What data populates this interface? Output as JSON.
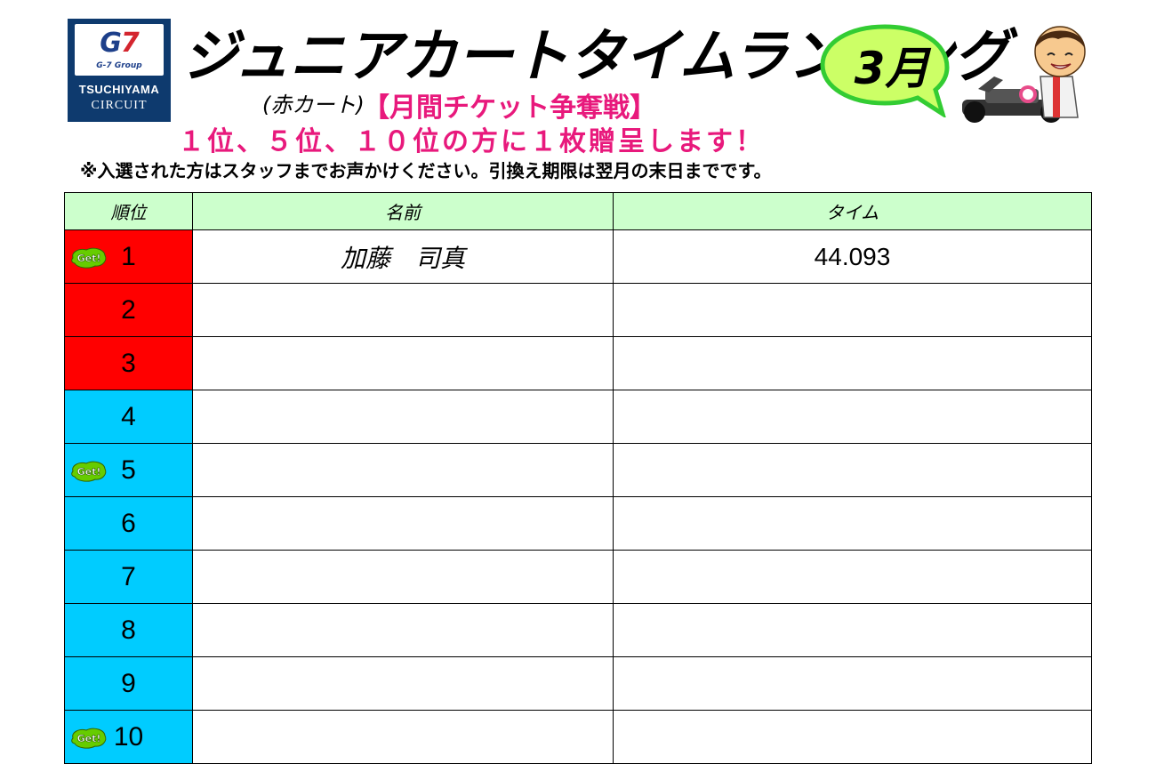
{
  "logo": {
    "mark_g": "G",
    "mark_7": "7",
    "group": "G-7 Group",
    "name_line1": "TSUCHIYAMA",
    "name_line2": "CIRCUIT"
  },
  "header": {
    "title": "ジュニアカートタイムランキング",
    "kart_type": "(赤カート)",
    "ticket": "【月間チケット争奪戦】",
    "award": "１位、５位、１０位の方に１枚贈呈します！",
    "note": "※入選された方はスタッフまでお声かけください。引換え期限は翌月の末日までです。",
    "month": "3月"
  },
  "table": {
    "headers": {
      "rank": "順位",
      "name": "名前",
      "time": "タイム"
    },
    "get_label": "Get!",
    "rows": [
      {
        "rank": "1",
        "name": "加藤　司真",
        "time": "44.093",
        "color": "red",
        "get": true
      },
      {
        "rank": "2",
        "name": "",
        "time": "",
        "color": "red",
        "get": false
      },
      {
        "rank": "3",
        "name": "",
        "time": "",
        "color": "red",
        "get": false
      },
      {
        "rank": "4",
        "name": "",
        "time": "",
        "color": "blue",
        "get": false
      },
      {
        "rank": "5",
        "name": "",
        "time": "",
        "color": "blue",
        "get": true
      },
      {
        "rank": "6",
        "name": "",
        "time": "",
        "color": "blue",
        "get": false
      },
      {
        "rank": "7",
        "name": "",
        "time": "",
        "color": "blue",
        "get": false
      },
      {
        "rank": "8",
        "name": "",
        "time": "",
        "color": "blue",
        "get": false
      },
      {
        "rank": "9",
        "name": "",
        "time": "",
        "color": "blue",
        "get": false
      },
      {
        "rank": "10",
        "name": "",
        "time": "",
        "color": "blue",
        "get": true
      }
    ]
  },
  "colors": {
    "top_rank": "#ff0000",
    "other_rank": "#00ccff",
    "header_bg": "#ccffcc",
    "accent_pink": "#e8197c",
    "bubble_bg": "#ccff66",
    "get_badge": "#66cc00"
  }
}
